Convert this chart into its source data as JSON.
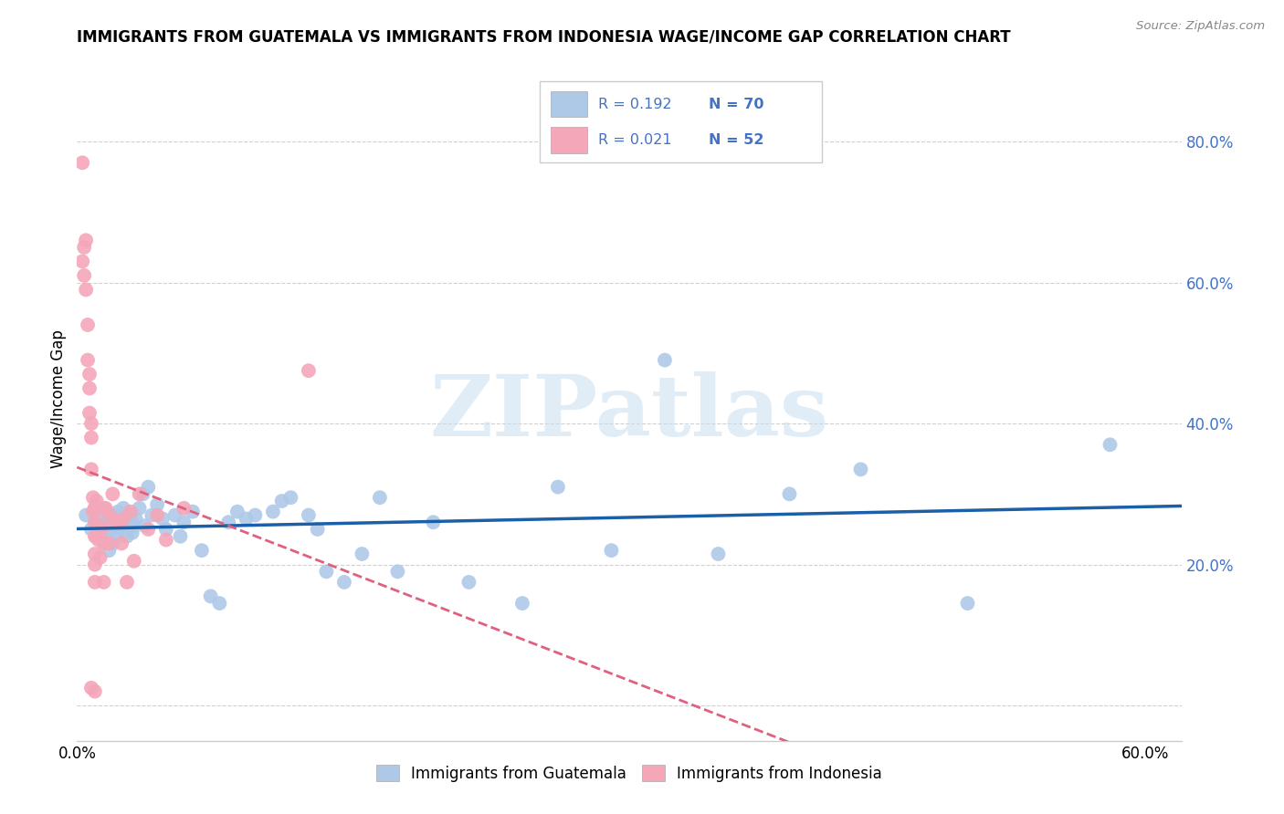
{
  "title": "IMMIGRANTS FROM GUATEMALA VS IMMIGRANTS FROM INDONESIA WAGE/INCOME GAP CORRELATION CHART",
  "source": "Source: ZipAtlas.com",
  "ylabel": "Wage/Income Gap",
  "legend_label1": "Immigrants from Guatemala",
  "legend_label2": "Immigrants from Indonesia",
  "r1": 0.192,
  "n1": 70,
  "r2": 0.021,
  "n2": 52,
  "color1": "#aec9e8",
  "color2": "#f4a7b9",
  "trendline1_color": "#1a5fa8",
  "trendline2_color": "#e06080",
  "text_color": "#4472c4",
  "right_yticks": [
    0.0,
    0.2,
    0.4,
    0.6,
    0.8
  ],
  "right_ytick_labels": [
    "",
    "20.0%",
    "40.0%",
    "60.0%",
    "80.0%"
  ],
  "xlim": [
    0.0,
    0.62
  ],
  "ylim": [
    -0.05,
    0.92
  ],
  "guatemala_x": [
    0.005,
    0.008,
    0.01,
    0.01,
    0.012,
    0.012,
    0.013,
    0.014,
    0.015,
    0.015,
    0.016,
    0.017,
    0.018,
    0.018,
    0.019,
    0.02,
    0.02,
    0.021,
    0.022,
    0.022,
    0.023,
    0.024,
    0.025,
    0.026,
    0.027,
    0.028,
    0.03,
    0.031,
    0.032,
    0.033,
    0.035,
    0.037,
    0.038,
    0.04,
    0.042,
    0.045,
    0.048,
    0.05,
    0.055,
    0.058,
    0.06,
    0.065,
    0.07,
    0.075,
    0.08,
    0.085,
    0.09,
    0.095,
    0.1,
    0.11,
    0.115,
    0.12,
    0.13,
    0.135,
    0.14,
    0.15,
    0.16,
    0.17,
    0.18,
    0.2,
    0.22,
    0.25,
    0.27,
    0.3,
    0.33,
    0.36,
    0.4,
    0.44,
    0.5,
    0.58
  ],
  "guatemala_y": [
    0.27,
    0.25,
    0.28,
    0.26,
    0.25,
    0.24,
    0.265,
    0.245,
    0.26,
    0.23,
    0.255,
    0.27,
    0.24,
    0.22,
    0.26,
    0.255,
    0.23,
    0.27,
    0.26,
    0.24,
    0.275,
    0.25,
    0.265,
    0.28,
    0.255,
    0.24,
    0.27,
    0.245,
    0.255,
    0.265,
    0.28,
    0.3,
    0.255,
    0.31,
    0.27,
    0.285,
    0.265,
    0.25,
    0.27,
    0.24,
    0.26,
    0.275,
    0.22,
    0.155,
    0.145,
    0.26,
    0.275,
    0.265,
    0.27,
    0.275,
    0.29,
    0.295,
    0.27,
    0.25,
    0.19,
    0.175,
    0.215,
    0.295,
    0.19,
    0.26,
    0.175,
    0.145,
    0.31,
    0.22,
    0.49,
    0.215,
    0.3,
    0.335,
    0.145,
    0.37
  ],
  "indonesia_x": [
    0.003,
    0.003,
    0.004,
    0.004,
    0.005,
    0.005,
    0.006,
    0.006,
    0.007,
    0.007,
    0.007,
    0.008,
    0.008,
    0.008,
    0.009,
    0.009,
    0.01,
    0.01,
    0.01,
    0.01,
    0.01,
    0.01,
    0.011,
    0.011,
    0.012,
    0.012,
    0.013,
    0.013,
    0.014,
    0.015,
    0.015,
    0.015,
    0.016,
    0.017,
    0.018,
    0.02,
    0.02,
    0.022,
    0.024,
    0.025,
    0.026,
    0.028,
    0.03,
    0.032,
    0.035,
    0.04,
    0.045,
    0.05,
    0.06,
    0.13,
    0.008,
    0.01
  ],
  "indonesia_y": [
    0.77,
    0.63,
    0.65,
    0.61,
    0.66,
    0.59,
    0.54,
    0.49,
    0.47,
    0.45,
    0.415,
    0.4,
    0.38,
    0.335,
    0.295,
    0.275,
    0.28,
    0.26,
    0.24,
    0.215,
    0.2,
    0.175,
    0.29,
    0.24,
    0.28,
    0.235,
    0.255,
    0.21,
    0.25,
    0.28,
    0.23,
    0.175,
    0.28,
    0.275,
    0.23,
    0.3,
    0.265,
    0.26,
    0.26,
    0.23,
    0.265,
    0.175,
    0.275,
    0.205,
    0.3,
    0.25,
    0.27,
    0.235,
    0.28,
    0.475,
    0.025,
    0.02
  ]
}
